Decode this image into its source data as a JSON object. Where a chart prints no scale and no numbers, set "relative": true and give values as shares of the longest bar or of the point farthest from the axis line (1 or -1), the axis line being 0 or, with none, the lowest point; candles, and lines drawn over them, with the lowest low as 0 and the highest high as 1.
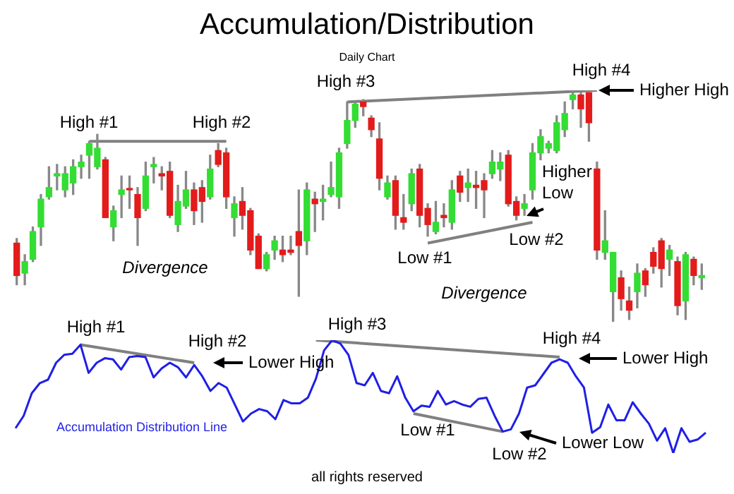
{
  "chart_data": [
    {
      "type": "candlestick",
      "title": "Accumulation/Distribution",
      "subtitle": "Daily Chart",
      "relative": true,
      "tick_labels": false,
      "categories": [
        null,
        null,
        null,
        null,
        null,
        null,
        null,
        null,
        null,
        null,
        null,
        null,
        null,
        null,
        null,
        null,
        null,
        null,
        null,
        null,
        null,
        null,
        null,
        null,
        null,
        null,
        null,
        null,
        null,
        null,
        null,
        null,
        null,
        null,
        null,
        null,
        null,
        null,
        null,
        null,
        null,
        null,
        null,
        null,
        null,
        null,
        null,
        null,
        null,
        null,
        null,
        null,
        null,
        null,
        null,
        null,
        null,
        null,
        null,
        null,
        null,
        null,
        null,
        null,
        null,
        null,
        null,
        null,
        null,
        null,
        null,
        null,
        null,
        null,
        null,
        null,
        null,
        null,
        null,
        null,
        null,
        null,
        null,
        null,
        null,
        null
      ],
      "ohlc": [
        [
          0.34,
          0.36,
          0.16,
          0.2
        ],
        [
          0.21,
          0.29,
          0.16,
          0.26
        ],
        [
          0.27,
          0.41,
          0.26,
          0.39
        ],
        [
          0.41,
          0.55,
          0.33,
          0.53
        ],
        [
          0.54,
          0.67,
          0.53,
          0.58
        ],
        [
          0.63,
          0.68,
          0.57,
          0.64
        ],
        [
          0.57,
          0.67,
          0.54,
          0.64
        ],
        [
          0.6,
          0.7,
          0.55,
          0.67
        ],
        [
          0.67,
          0.72,
          0.62,
          0.69
        ],
        [
          0.72,
          0.78,
          0.62,
          0.77
        ],
        [
          0.67,
          0.81,
          0.66,
          0.75
        ],
        [
          0.7,
          0.71,
          0.45,
          0.45
        ],
        [
          0.41,
          0.5,
          0.35,
          0.48
        ],
        [
          0.55,
          0.63,
          0.45,
          0.57
        ],
        [
          0.57,
          0.63,
          0.49,
          0.57
        ],
        [
          0.55,
          0.58,
          0.33,
          0.45
        ],
        [
          0.49,
          0.69,
          0.48,
          0.63
        ],
        [
          0.67,
          0.71,
          0.6,
          0.68
        ],
        [
          0.64,
          0.67,
          0.57,
          0.63
        ],
        [
          0.65,
          0.69,
          0.45,
          0.46
        ],
        [
          0.42,
          0.59,
          0.39,
          0.52
        ],
        [
          0.5,
          0.65,
          0.49,
          0.57
        ],
        [
          0.57,
          0.6,
          0.42,
          0.48
        ],
        [
          0.58,
          0.61,
          0.43,
          0.52
        ],
        [
          0.54,
          0.72,
          0.53,
          0.66
        ],
        [
          0.74,
          0.77,
          0.67,
          0.68
        ],
        [
          0.73,
          0.75,
          0.49,
          0.54
        ],
        [
          0.45,
          0.54,
          0.37,
          0.51
        ],
        [
          0.52,
          0.58,
          0.4,
          0.46
        ],
        [
          0.48,
          0.49,
          0.29,
          0.31
        ],
        [
          0.37,
          0.38,
          0.23,
          0.23
        ],
        [
          0.23,
          0.3,
          0.22,
          0.29
        ],
        [
          0.31,
          0.37,
          0.27,
          0.35
        ],
        [
          0.31,
          0.37,
          0.26,
          0.29
        ],
        [
          0.31,
          0.37,
          0.29,
          0.3
        ],
        [
          0.39,
          0.57,
          0.11,
          0.33
        ],
        [
          0.35,
          0.6,
          0.29,
          0.57
        ],
        [
          0.53,
          0.56,
          0.39,
          0.51
        ],
        [
          0.52,
          0.59,
          0.44,
          0.53
        ],
        [
          0.55,
          0.69,
          0.54,
          0.58
        ],
        [
          0.54,
          0.75,
          0.49,
          0.73
        ],
        [
          0.77,
          0.95,
          0.75,
          0.87
        ],
        [
          0.87,
          0.95,
          0.84,
          0.94
        ],
        [
          0.95,
          0.96,
          0.89,
          0.93
        ],
        [
          0.88,
          0.89,
          0.8,
          0.83
        ],
        [
          0.79,
          0.86,
          0.57,
          0.62
        ],
        [
          0.54,
          0.63,
          0.53,
          0.6
        ],
        [
          0.61,
          0.63,
          0.4,
          0.46
        ],
        [
          0.45,
          0.55,
          0.4,
          0.43
        ],
        [
          0.51,
          0.66,
          0.48,
          0.64
        ],
        [
          0.66,
          0.68,
          0.41,
          0.46
        ],
        [
          0.49,
          0.51,
          0.37,
          0.42
        ],
        [
          0.39,
          0.52,
          0.38,
          0.43
        ],
        [
          0.46,
          0.51,
          0.41,
          0.45
        ],
        [
          0.43,
          0.61,
          0.4,
          0.57
        ],
        [
          0.63,
          0.65,
          0.52,
          0.56
        ],
        [
          0.58,
          0.66,
          0.52,
          0.6
        ],
        [
          0.59,
          0.65,
          0.49,
          0.58
        ],
        [
          0.61,
          0.64,
          0.45,
          0.57
        ],
        [
          0.64,
          0.74,
          0.62,
          0.69
        ],
        [
          0.66,
          0.73,
          0.61,
          0.69
        ],
        [
          0.72,
          0.74,
          0.5,
          0.51
        ],
        [
          0.52,
          0.54,
          0.44,
          0.46
        ],
        [
          0.49,
          0.55,
          0.46,
          0.51
        ],
        [
          0.57,
          0.77,
          0.53,
          0.73
        ],
        [
          0.73,
          0.83,
          0.7,
          0.8
        ],
        [
          0.75,
          0.78,
          0.73,
          0.77
        ],
        [
          0.74,
          0.89,
          0.73,
          0.86
        ],
        [
          0.83,
          0.95,
          0.8,
          0.9
        ],
        [
          0.96,
          1,
          0.92,
          0.98
        ],
        [
          0.98,
          0.99,
          0.84,
          0.92
        ],
        [
          0.99,
          0.99,
          0.78,
          0.86
        ],
        [
          0.66,
          0.69,
          0.27,
          0.31
        ],
        [
          0.3,
          0.48,
          0.27,
          0.35
        ],
        [
          0.13,
          0.3,
          0,
          0.3
        ],
        [
          0.19,
          0.22,
          0.05,
          0.1
        ],
        [
          0.09,
          0.15,
          0.01,
          0.05
        ],
        [
          0.13,
          0.25,
          0.06,
          0.21
        ],
        [
          0.22,
          0.23,
          0.11,
          0.16
        ],
        [
          0.3,
          0.32,
          0.21,
          0.24
        ],
        [
          0.35,
          0.36,
          0.15,
          0.23
        ],
        [
          0.27,
          0.33,
          0.2,
          0.31
        ],
        [
          0.26,
          0.28,
          0.03,
          0.07
        ],
        [
          0.09,
          0.3,
          0.01,
          0.29
        ],
        [
          0.27,
          0.28,
          0.16,
          0.2
        ],
        [
          0.19,
          0.25,
          0.14,
          0.2
        ]
      ],
      "colors": [
        "#e31b1b",
        "#33dd33",
        "#33dd33",
        "#33dd33",
        "#33dd33",
        "#33dd33",
        "#33dd33",
        "#33dd33",
        "#33dd33",
        "#33dd33",
        "#33dd33",
        "#e31b1b",
        "#33dd33",
        "#33dd33",
        "#e31b1b",
        "#e31b1b",
        "#33dd33",
        "#33dd33",
        "#e31b1b",
        "#e31b1b",
        "#33dd33",
        "#33dd33",
        "#e31b1b",
        "#e31b1b",
        "#33dd33",
        "#e31b1b",
        "#e31b1b",
        "#33dd33",
        "#e31b1b",
        "#e31b1b",
        "#e31b1b",
        "#33dd33",
        "#33dd33",
        "#e31b1b",
        "#e31b1b",
        "#e31b1b",
        "#33dd33",
        "#e31b1b",
        "#33dd33",
        "#33dd33",
        "#33dd33",
        "#33dd33",
        "#33dd33",
        "#e31b1b",
        "#e31b1b",
        "#e31b1b",
        "#33dd33",
        "#e31b1b",
        "#e31b1b",
        "#33dd33",
        "#e31b1b",
        "#e31b1b",
        "#33dd33",
        "#e31b1b",
        "#33dd33",
        "#e31b1b",
        "#33dd33",
        "#e31b1b",
        "#e31b1b",
        "#33dd33",
        "#33dd33",
        "#e31b1b",
        "#e31b1b",
        "#33dd33",
        "#33dd33",
        "#33dd33",
        "#33dd33",
        "#33dd33",
        "#33dd33",
        "#33dd33",
        "#e31b1b",
        "#e31b1b",
        "#e31b1b",
        "#33dd33",
        "#33dd33",
        "#e31b1b",
        "#e31b1b",
        "#33dd33",
        "#e31b1b",
        "#e31b1b",
        "#e31b1b",
        "#33dd33",
        "#e31b1b",
        "#33dd33",
        "#e31b1b",
        "#33dd33"
      ],
      "series": [
        {
          "type": "line",
          "color": "#808080",
          "values": [
            null,
            null,
            null,
            null,
            null,
            null,
            null,
            null,
            null,
            0.78,
            null,
            null,
            null,
            null,
            null,
            null,
            null,
            null,
            null,
            null,
            null,
            null,
            null,
            null,
            null,
            null,
            0.78,
            null,
            null,
            null,
            null,
            null,
            null,
            null,
            null,
            null,
            null,
            null,
            null,
            null,
            null,
            null,
            null,
            null,
            null,
            null,
            null,
            null,
            null,
            null,
            null,
            null,
            null,
            null,
            null,
            null,
            null,
            null,
            null,
            null,
            null,
            null,
            null,
            null,
            null,
            null,
            null,
            null,
            null,
            null,
            null,
            null,
            null,
            null,
            null,
            null,
            null,
            null,
            null,
            null,
            null,
            null,
            null,
            null,
            null,
            null
          ]
        },
        {
          "type": "line",
          "color": "#808080",
          "values": [
            null,
            null,
            null,
            null,
            null,
            null,
            null,
            null,
            null,
            null,
            null,
            null,
            null,
            null,
            null,
            null,
            null,
            null,
            null,
            null,
            null,
            null,
            null,
            null,
            null,
            null,
            null,
            null,
            null,
            null,
            null,
            null,
            null,
            null,
            null,
            null,
            null,
            null,
            null,
            null,
            null,
            0.95,
            null,
            null,
            null,
            null,
            null,
            null,
            null,
            null,
            null,
            null,
            null,
            null,
            null,
            null,
            null,
            null,
            null,
            null,
            null,
            null,
            null,
            null,
            null,
            null,
            null,
            null,
            null,
            null,
            null,
            null,
            1,
            null,
            null,
            null,
            null,
            null,
            null,
            null,
            null,
            null,
            null,
            null,
            null,
            null
          ]
        },
        {
          "type": "line",
          "color": "#808080",
          "values": [
            null,
            null,
            null,
            null,
            null,
            null,
            null,
            null,
            null,
            null,
            null,
            null,
            null,
            null,
            null,
            null,
            null,
            null,
            null,
            null,
            null,
            null,
            null,
            null,
            null,
            null,
            null,
            null,
            null,
            null,
            null,
            null,
            null,
            null,
            null,
            null,
            null,
            null,
            null,
            null,
            null,
            null,
            null,
            null,
            null,
            null,
            null,
            null,
            null,
            null,
            null,
            0.34,
            null,
            null,
            null,
            null,
            null,
            null,
            null,
            null,
            null,
            null,
            null,
            null,
            0.43,
            null,
            null,
            null,
            null,
            null,
            null,
            null,
            null,
            null,
            null,
            null,
            null,
            null,
            null,
            null,
            null,
            null,
            null,
            null,
            null,
            null
          ]
        }
      ],
      "annotations": [
        "High #1",
        "High #2",
        "High #3",
        "High #4",
        "Higher High",
        "Higher Low",
        "Low #1",
        "Low #2",
        "Divergence",
        "Divergence"
      ]
    },
    {
      "type": "line",
      "relative": true,
      "tick_labels": false,
      "categories": [
        null,
        null,
        null,
        null,
        null,
        null,
        null,
        null,
        null,
        null,
        null,
        null,
        null,
        null,
        null,
        null,
        null,
        null,
        null,
        null,
        null,
        null,
        null,
        null,
        null,
        null,
        null,
        null,
        null,
        null,
        null,
        null,
        null,
        null,
        null,
        null,
        null,
        null,
        null,
        null,
        null,
        null,
        null,
        null,
        null,
        null,
        null,
        null,
        null,
        null,
        null,
        null,
        null,
        null,
        null,
        null,
        null,
        null,
        null,
        null,
        null,
        null,
        null,
        null,
        null,
        null,
        null,
        null,
        null,
        null,
        null,
        null,
        null,
        null,
        null,
        null,
        null,
        null,
        null,
        null,
        null,
        null,
        null,
        null,
        null,
        null
      ],
      "series": [
        {
          "name": "Accumulation Distribution Line",
          "color": "#1f1fe6",
          "values": [
            0.22,
            0.33,
            0.53,
            0.62,
            0.65,
            0.8,
            0.87,
            0.88,
            0.96,
            0.71,
            0.8,
            0.84,
            0.83,
            0.74,
            0.85,
            0.86,
            0.85,
            0.67,
            0.75,
            0.8,
            0.76,
            0.67,
            0.78,
            0.68,
            0.55,
            0.62,
            0.58,
            0.43,
            0.28,
            0.35,
            0.39,
            0.37,
            0.3,
            0.47,
            0.44,
            0.44,
            0.49,
            0.66,
            0.91,
            1,
            0.97,
            0.87,
            0.62,
            0.6,
            0.71,
            0.55,
            0.53,
            0.68,
            0.49,
            0.37,
            0.42,
            0.41,
            0.55,
            0.43,
            0.46,
            0.43,
            0.41,
            0.48,
            0.49,
            0.33,
            0.19,
            0.21,
            0.35,
            0.58,
            0.6,
            0.7,
            0.8,
            0.83,
            0.8,
            0.68,
            0.58,
            0.18,
            0.23,
            0.43,
            0.29,
            0.29,
            0.45,
            0.35,
            0.26,
            0.11,
            0.22,
            0,
            0.22,
            0.1,
            0.12,
            0.18
          ]
        },
        {
          "type": "line",
          "color": "#808080",
          "values": [
            null,
            null,
            null,
            null,
            null,
            null,
            null,
            null,
            0.96,
            null,
            null,
            null,
            null,
            null,
            null,
            null,
            null,
            null,
            null,
            null,
            null,
            null,
            0.8,
            null,
            null,
            null,
            null,
            null,
            null,
            null,
            null,
            null,
            null,
            null,
            null,
            null,
            null,
            null,
            null,
            null,
            null,
            null,
            null,
            null,
            null,
            null,
            null,
            null,
            null,
            null,
            null,
            null,
            null,
            null,
            null,
            null,
            null,
            null,
            null,
            null,
            null,
            null,
            null,
            null,
            null,
            null,
            null,
            null,
            null,
            null,
            null,
            null,
            null,
            null,
            null,
            null,
            null,
            null,
            null,
            null,
            null,
            null,
            null,
            null,
            null,
            null
          ]
        },
        {
          "type": "line",
          "color": "#808080",
          "values": [
            null,
            null,
            null,
            null,
            null,
            null,
            null,
            null,
            null,
            null,
            null,
            null,
            null,
            null,
            null,
            null,
            null,
            null,
            null,
            null,
            null,
            null,
            null,
            null,
            null,
            null,
            null,
            null,
            null,
            null,
            null,
            null,
            null,
            null,
            null,
            null,
            null,
            1,
            null,
            null,
            null,
            null,
            null,
            null,
            null,
            null,
            null,
            null,
            null,
            null,
            null,
            null,
            null,
            null,
            null,
            null,
            null,
            null,
            null,
            null,
            null,
            null,
            null,
            null,
            null,
            null,
            null,
            0.85,
            null,
            null,
            null,
            null,
            null,
            null,
            null,
            null,
            null,
            null,
            null,
            null,
            null,
            null,
            null,
            null,
            null,
            null
          ]
        },
        {
          "type": "line",
          "color": "#808080",
          "values": [
            null,
            null,
            null,
            null,
            null,
            null,
            null,
            null,
            null,
            null,
            null,
            null,
            null,
            null,
            null,
            null,
            null,
            null,
            null,
            null,
            null,
            null,
            null,
            null,
            null,
            null,
            null,
            null,
            null,
            null,
            null,
            null,
            null,
            null,
            null,
            null,
            null,
            null,
            null,
            null,
            null,
            null,
            null,
            null,
            null,
            null,
            null,
            null,
            null,
            0.35,
            null,
            null,
            null,
            null,
            null,
            null,
            null,
            null,
            null,
            null,
            0.19,
            null,
            null,
            null,
            null,
            null,
            null,
            null,
            null,
            null,
            null,
            null,
            null,
            null,
            null,
            null,
            null,
            null,
            null,
            null,
            null,
            null,
            null,
            null,
            null,
            null
          ]
        }
      ],
      "annotations": [
        "High #1",
        "High #2",
        "Lower High",
        "High #3",
        "High #4",
        "Lower High",
        "Low #1",
        "Low #2",
        "Lower Low",
        "all rights reserved"
      ]
    }
  ]
}
